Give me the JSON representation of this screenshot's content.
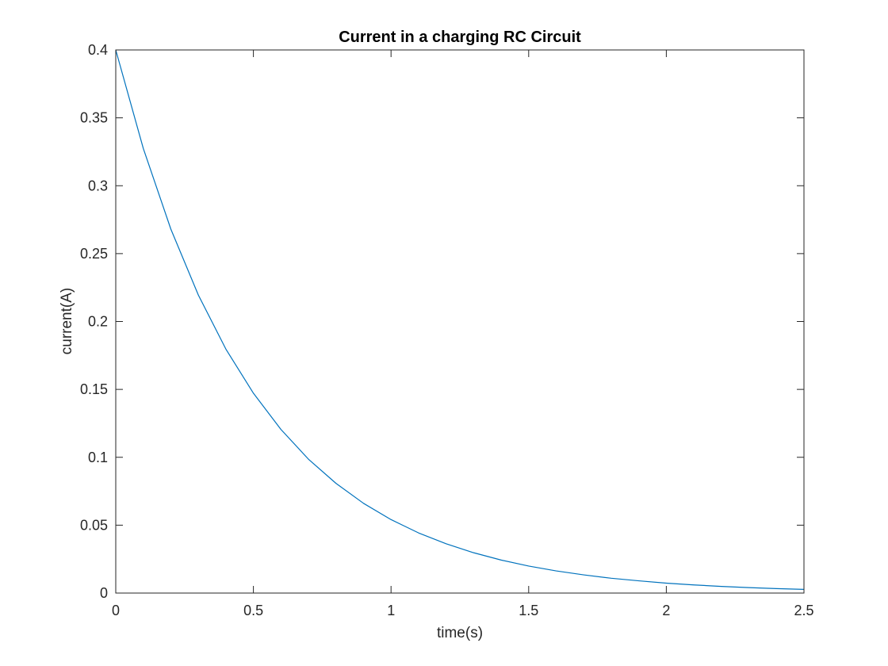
{
  "chart_data": {
    "type": "line",
    "title": "Current in a charging RC Circuit",
    "xlabel": "time(s)",
    "ylabel": "current(A)",
    "xlim": [
      0,
      2.5
    ],
    "ylim": [
      0,
      0.4
    ],
    "grid": false,
    "x_ticks": [
      0,
      0.5,
      1,
      1.5,
      2,
      2.5
    ],
    "x_tick_labels": [
      "0",
      "0.5",
      "1",
      "1.5",
      "2",
      "2.5"
    ],
    "y_ticks": [
      0,
      0.05,
      0.1,
      0.15,
      0.2,
      0.25,
      0.3,
      0.35,
      0.4
    ],
    "y_tick_labels": [
      "0",
      "0.05",
      "0.1",
      "0.15",
      "0.2",
      "0.25",
      "0.3",
      "0.35",
      "0.4"
    ],
    "series": [
      {
        "color": "#0072bd",
        "x": [
          0,
          0.1,
          0.2,
          0.3,
          0.4,
          0.5,
          0.6,
          0.7,
          0.8,
          0.9,
          1.0,
          1.1,
          1.2,
          1.3,
          1.4,
          1.5,
          1.6,
          1.7,
          1.8,
          1.9,
          2.0,
          2.1,
          2.2,
          2.3,
          2.4,
          2.5
        ],
        "y": [
          0.4,
          0.3275,
          0.2681,
          0.2195,
          0.1797,
          0.1472,
          0.1205,
          0.0986,
          0.0808,
          0.0661,
          0.0541,
          0.0443,
          0.0363,
          0.0297,
          0.0243,
          0.0199,
          0.0163,
          0.0134,
          0.0109,
          0.009,
          0.0073,
          0.006,
          0.0049,
          0.004,
          0.0033,
          0.0027
        ]
      }
    ]
  }
}
